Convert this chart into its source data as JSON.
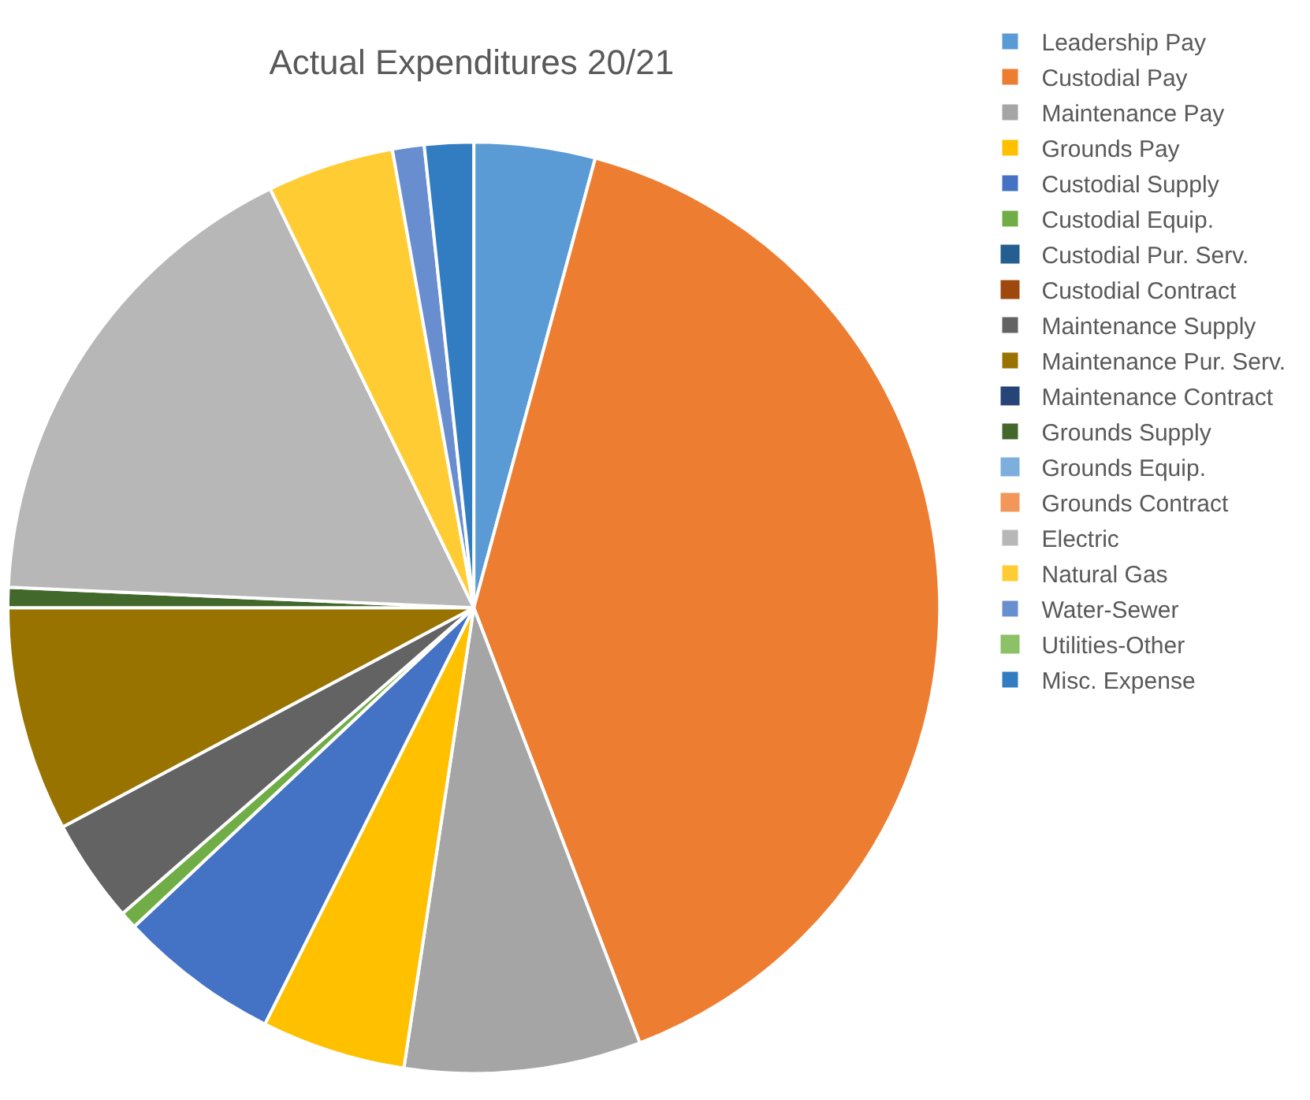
{
  "chart_data": {
    "type": "pie",
    "title": "Actual Expenditures 20/21",
    "categories": [
      "Leadership Pay",
      "Custodial Pay",
      "Maintenance Pay",
      "Grounds Pay",
      "Custodial Supply",
      "Custodial Equip.",
      "Custodial Pur. Serv.",
      "Custodial Contract",
      "Maintenance Supply",
      "Maintenance Pur. Serv.",
      "Maintenance Contract",
      "Grounds Supply",
      "Grounds Equip.",
      "Grounds Contract",
      "Electric",
      "Natural Gas",
      "Water-Sewer",
      "Utilities-Other",
      "Misc. Expense"
    ],
    "values": [
      4.2,
      40.0,
      8.2,
      5.0,
      5.6,
      0.6,
      0,
      0,
      3.6,
      7.8,
      0,
      0.7,
      0,
      0,
      17.1,
      4.4,
      1.1,
      0,
      1.7
    ],
    "colors": [
      "#5b9bd5",
      "#ed7d31",
      "#a5a5a5",
      "#ffc000",
      "#4472c4",
      "#70ad47",
      "#255e91",
      "#9e480e",
      "#636363",
      "#997300",
      "#264478",
      "#43682b",
      "#7cafdd",
      "#f1975a",
      "#b7b7b7",
      "#ffcd33",
      "#698ed0",
      "#8cc168",
      "#327dc2"
    ],
    "legend": "right"
  }
}
